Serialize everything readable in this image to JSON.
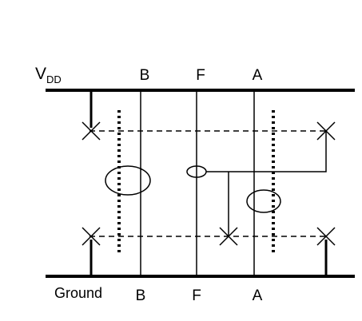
{
  "labels": {
    "vdd_main": "V",
    "vdd_sub": "DD",
    "ground": "Ground",
    "top_columns": [
      "B",
      "F",
      "A"
    ],
    "bottom_columns": [
      "B",
      "F",
      "A"
    ]
  },
  "colors": {
    "stroke": "#000000",
    "background": "#ffffff"
  }
}
